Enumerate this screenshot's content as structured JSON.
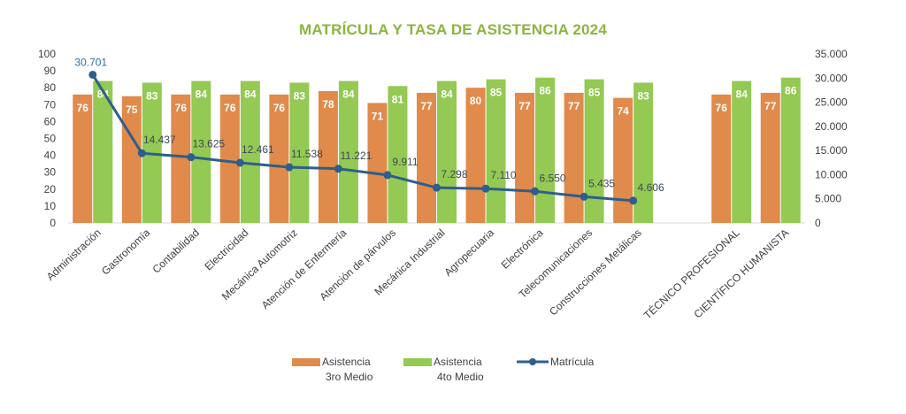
{
  "chart_data": {
    "type": "bar",
    "title": "MATRÍCULA Y TASA DE ASISTENCIA 2024",
    "categories": [
      "Administración",
      "Gastronomía",
      "Contabilidad",
      "Electricidad",
      "Mecánica Automotriz",
      "Atención de Enfermería",
      "Atención de párvulos",
      "Mecánica Industrial",
      "Agropecuaria",
      "Electrónica",
      "Telecomunicaciones",
      "Construcciones Metálicas",
      "",
      "TÉCNICO PROFESIONAL",
      "CIENTÍFICO HUMANISTA"
    ],
    "series": [
      {
        "name": "Asistencia 3ro Medio",
        "legend_line1": "Asistencia",
        "legend_line2": "3ro Medio",
        "type": "bar",
        "axis": "left",
        "color": "#e08a4c",
        "values": [
          76,
          75,
          76,
          76,
          76,
          78,
          71,
          77,
          80,
          77,
          77,
          74,
          null,
          76,
          77
        ],
        "labels": [
          "76",
          "75",
          "76",
          "76",
          "76",
          "78",
          "71",
          "77",
          "80",
          "77",
          "77",
          "74",
          "",
          "76",
          "77"
        ]
      },
      {
        "name": "Asistencia 4to Medio",
        "legend_line1": "Asistencia",
        "legend_line2": "4to Medio",
        "type": "bar",
        "axis": "left",
        "color": "#94c954",
        "values": [
          84,
          83,
          84,
          84,
          83,
          84,
          81,
          84,
          85,
          86,
          85,
          83,
          null,
          84,
          86
        ],
        "labels": [
          "84",
          "83",
          "84",
          "84",
          "83",
          "84",
          "81",
          "84",
          "85",
          "86",
          "85",
          "83",
          "",
          "84",
          "86"
        ]
      },
      {
        "name": "Matrícula",
        "legend_line1": "Matrícula",
        "type": "line",
        "axis": "right",
        "color": "#2e5f8a",
        "values": [
          30701,
          14437,
          13625,
          12461,
          11538,
          11221,
          9911,
          7298,
          7110,
          6550,
          5435,
          4606,
          null,
          null,
          null
        ],
        "labels": [
          "30.701",
          "14.437",
          "13.625",
          "12.461",
          "11.538",
          "11.221",
          "9.911",
          "7.298",
          "7.110",
          "6.550",
          "5.435",
          "4.606",
          "",
          "",
          ""
        ]
      }
    ],
    "y_left": {
      "min": 0,
      "max": 100,
      "step": 10,
      "ticks": [
        "0",
        "10",
        "20",
        "30",
        "40",
        "50",
        "60",
        "70",
        "80",
        "90",
        "100"
      ]
    },
    "y_right": {
      "min": 0,
      "max": 35000,
      "step": 5000,
      "ticks": [
        "0",
        "5.000",
        "10.000",
        "15.000",
        "20.000",
        "25.000",
        "30.000",
        "35.000"
      ]
    },
    "grid": false,
    "legend_position": "bottom"
  }
}
